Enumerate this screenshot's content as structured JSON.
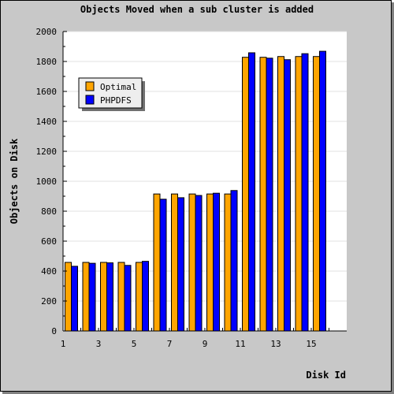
{
  "chart_data": {
    "type": "bar",
    "title": "Objects Moved when a sub cluster is added",
    "xlabel": "Disk Id",
    "ylabel": "Objects on Disk",
    "ylim": [
      0,
      2000
    ],
    "y_ticks": [
      "0",
      "200",
      "400",
      "600",
      "800",
      "1000",
      "1200",
      "1400",
      "1600",
      "1800",
      "2000"
    ],
    "x_tick_labels": [
      "1",
      "3",
      "5",
      "7",
      "9",
      "11",
      "13",
      "15"
    ],
    "categories": [
      "1",
      "2",
      "3",
      "4",
      "5",
      "6",
      "7",
      "8",
      "9",
      "10",
      "11",
      "12",
      "13",
      "14",
      "15"
    ],
    "grid": true,
    "legend_position": "top-left",
    "series": [
      {
        "name": "Optimal",
        "color": "#FFA500",
        "values": [
          458,
          458,
          458,
          458,
          458,
          915,
          915,
          915,
          915,
          915,
          1828,
          1828,
          1833,
          1833,
          1833
        ]
      },
      {
        "name": "PHPDFS",
        "color": "#0000FF",
        "values": [
          432,
          452,
          455,
          438,
          465,
          880,
          890,
          905,
          920,
          938,
          1858,
          1822,
          1812,
          1852,
          1868
        ]
      }
    ]
  }
}
